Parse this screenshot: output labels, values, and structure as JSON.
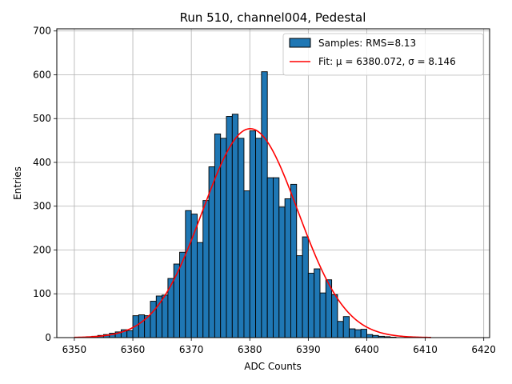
{
  "chart_data": {
    "type": "bar",
    "title": "Run 510, channel004, Pedestal",
    "xlabel": "ADC Counts",
    "ylabel": "Entries",
    "xlim": [
      6347,
      6421
    ],
    "ylim": [
      0,
      705
    ],
    "xticks": [
      6350,
      6360,
      6370,
      6380,
      6390,
      6400,
      6410,
      6420
    ],
    "yticks": [
      0,
      100,
      200,
      300,
      400,
      500,
      600,
      700
    ],
    "grid": true,
    "legend_position": "top-right",
    "bin_width": 1,
    "bin_start": 6350,
    "series": [
      {
        "name": "Samples: RMS=8.13",
        "kind": "histogram",
        "color": "#1f77b4",
        "edgecolor": "#000000",
        "bin_edges_start": 6350,
        "counts": [
          0,
          1,
          2,
          3,
          5,
          7,
          10,
          13,
          18,
          16,
          50,
          52,
          50,
          83,
          95,
          97,
          135,
          168,
          195,
          290,
          282,
          217,
          313,
          390,
          465,
          455,
          505,
          510,
          455,
          335,
          472,
          455,
          607,
          365,
          365,
          298,
          317,
          350,
          187,
          230,
          147,
          157,
          102,
          132,
          98,
          37,
          48,
          20,
          18,
          19,
          7,
          5,
          3,
          2,
          1,
          0,
          0,
          0,
          0,
          0,
          0,
          0,
          0,
          0,
          0,
          0,
          0
        ]
      },
      {
        "name": "Fit: μ = 6380.072, σ = 8.146",
        "kind": "gaussian_fit",
        "color": "#ff0000",
        "mu": 6380.072,
        "sigma": 8.146,
        "amplitude": 477,
        "x_range": [
          6350,
          6411
        ]
      }
    ]
  }
}
